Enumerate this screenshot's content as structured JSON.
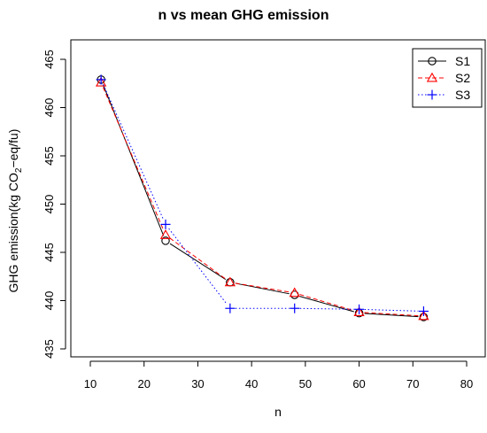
{
  "chart_data": {
    "type": "line",
    "title": "n vs mean GHG emission",
    "xlabel": "n",
    "ylabel_prefix": "GHG emission(kg CO",
    "ylabel_sub": "2",
    "ylabel_suffix": "−eq/fu)",
    "xlim": [
      10,
      80
    ],
    "ylim": [
      435,
      465
    ],
    "x_ticks": [
      "10",
      "20",
      "30",
      "40",
      "50",
      "60",
      "70",
      "80"
    ],
    "y_ticks": [
      "435",
      "440",
      "445",
      "450",
      "455",
      "460",
      "465"
    ],
    "x": [
      12,
      24,
      36,
      48,
      60,
      72
    ],
    "series": [
      {
        "name": "S1",
        "values": [
          462.9,
          446.2,
          441.9,
          440.6,
          438.7,
          438.3
        ],
        "color": "#000000",
        "line_style": "solid",
        "marker": "circle"
      },
      {
        "name": "S2",
        "values": [
          462.6,
          446.8,
          441.9,
          440.8,
          438.8,
          438.4
        ],
        "color": "#ff0000",
        "line_style": "dashed",
        "marker": "triangle"
      },
      {
        "name": "S3",
        "values": [
          462.9,
          447.9,
          439.2,
          439.2,
          439.1,
          438.9
        ],
        "color": "#0000ff",
        "line_style": "dotted",
        "marker": "plus"
      }
    ],
    "legend_position": "top-right",
    "grid": false
  }
}
